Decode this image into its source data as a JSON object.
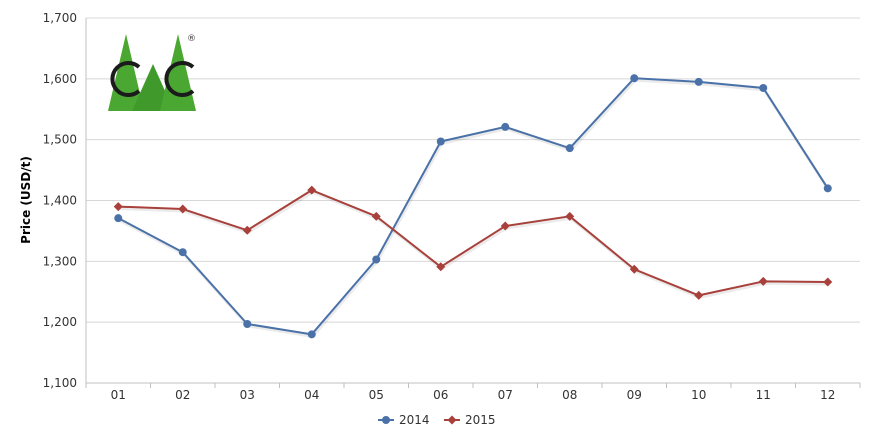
{
  "chart_data": {
    "type": "line",
    "title": "",
    "xlabel": "",
    "ylabel": "Price (USD/t)",
    "categories": [
      "01",
      "02",
      "03",
      "04",
      "05",
      "06",
      "07",
      "08",
      "09",
      "10",
      "11",
      "12"
    ],
    "y_ticks": [
      "1,100",
      "1,200",
      "1,300",
      "1,400",
      "1,500",
      "1,600",
      "1,700"
    ],
    "ylim": [
      1100,
      1700
    ],
    "grid": true,
    "legend_position": "bottom-center",
    "series": [
      {
        "name": "2014",
        "color": "#4a72a8",
        "marker": "circle",
        "values": [
          1371,
          1315,
          1197,
          1180,
          1303,
          1497,
          1521,
          1486,
          1601,
          1595,
          1585,
          1420
        ]
      },
      {
        "name": "2015",
        "color": "#a8413b",
        "marker": "diamond",
        "values": [
          1390,
          1386,
          1351,
          1417,
          1374,
          1291,
          1358,
          1374,
          1287,
          1244,
          1267,
          1266
        ]
      }
    ]
  },
  "logo": {
    "mark_text": "CC",
    "registered_symbol": "®",
    "green": "#4aa832",
    "dark": "#1b1b1b"
  }
}
